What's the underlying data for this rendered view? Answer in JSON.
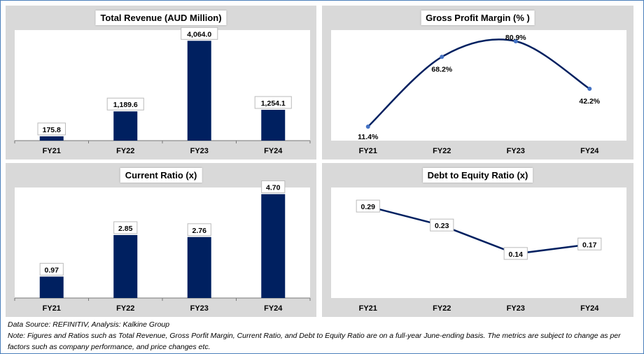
{
  "chart_data": [
    {
      "type": "bar",
      "title": "Total Revenue (AUD Million)",
      "categories": [
        "FY21",
        "FY22",
        "FY23",
        "FY24"
      ],
      "values": [
        175.8,
        1189.6,
        4064.0,
        1254.1
      ],
      "labels": [
        "175.8",
        "1,189.6",
        "4,064.0",
        "1,254.1"
      ],
      "ylim": [
        0,
        4500
      ],
      "color": "#002060"
    },
    {
      "type": "line",
      "smooth": true,
      "title": "Gross Profit Margin (% )",
      "categories": [
        "FY21",
        "FY22",
        "FY23",
        "FY24"
      ],
      "values": [
        11.4,
        68.2,
        80.9,
        42.2
      ],
      "labels": [
        "11.4%",
        "68.2%",
        "80.9%",
        "42.2%"
      ],
      "ylim": [
        0,
        90
      ],
      "color": "#002060"
    },
    {
      "type": "bar",
      "title": "Current Ratio (x)",
      "categories": [
        "FY21",
        "FY22",
        "FY23",
        "FY24"
      ],
      "values": [
        0.97,
        2.85,
        2.76,
        4.7
      ],
      "labels": [
        "0.97",
        "2.85",
        "2.76",
        "4.70"
      ],
      "ylim": [
        0,
        5
      ],
      "color": "#002060"
    },
    {
      "type": "line",
      "smooth": false,
      "title": "Debt to Equity Ratio (x)",
      "categories": [
        "FY21",
        "FY22",
        "FY23",
        "FY24"
      ],
      "values": [
        0.29,
        0.23,
        0.14,
        0.17
      ],
      "labels": [
        "0.29",
        "0.23",
        "0.14",
        "0.17"
      ],
      "ylim": [
        0,
        0.35
      ],
      "color": "#002060"
    }
  ],
  "notes": {
    "source": "Data Source: REFINITIV, Analysis: Kalkine Group",
    "note": "Note: Figures and Ratios such as Total Revenue, Gross Porfit Margin, Current Ratio, and Debt to Equity Ratio are on a full-year June-ending basis. The metrics are subject to change as per factors such as company performance, and price changes etc."
  }
}
